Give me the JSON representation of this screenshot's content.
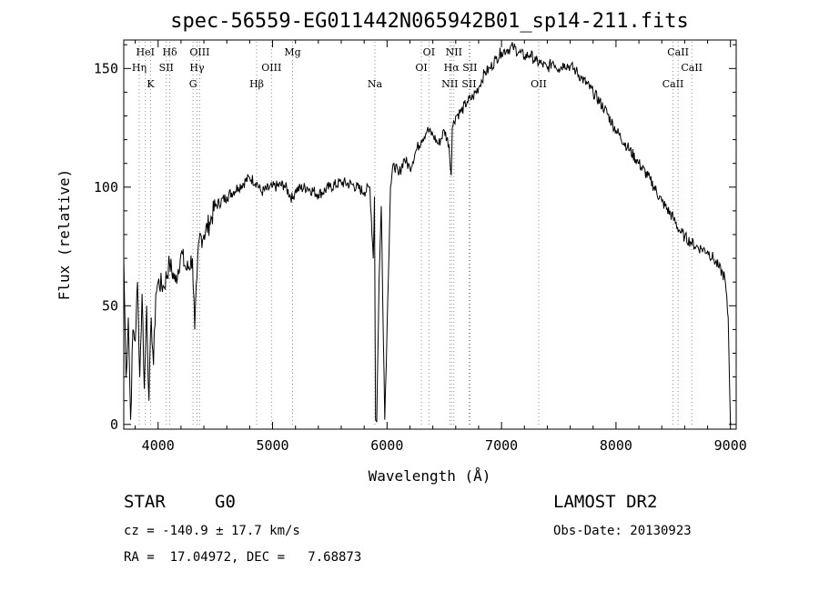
{
  "title": "spec-56559-EG011442N065942B01_sp14-211.fits",
  "info": {
    "class": "STAR",
    "subclass": "G0",
    "survey": "LAMOST DR2",
    "cz": "cz = -140.9 ± 17.7 km/s",
    "obs_date": "Obs-Date: 20130923",
    "radec": "RA =  17.04972, DEC =   7.68873"
  },
  "chart_data": {
    "type": "line",
    "xlabel": "Wavelength (Å)",
    "ylabel": "Flux (relative)",
    "xlim": [
      3700,
      9050
    ],
    "ylim": [
      -2,
      162
    ],
    "xticks": [
      4000,
      5000,
      6000,
      7000,
      8000,
      9000
    ],
    "yticks": [
      0,
      50,
      100,
      150
    ],
    "series": [
      {
        "x": [
          3700,
          3720,
          3740,
          3760,
          3780,
          3800,
          3820,
          3840,
          3860,
          3880,
          3900,
          3920,
          3940,
          3960,
          3980,
          4000,
          4050,
          4100,
          4150,
          4200,
          4250,
          4300,
          4320,
          4340,
          4360,
          4400,
          4450,
          4500,
          4600,
          4700,
          4800,
          4860,
          4900,
          5000,
          5100,
          5175,
          5200,
          5300,
          5400,
          5500,
          5600,
          5700,
          5800,
          5850,
          5880,
          5890,
          5900,
          5910,
          5930,
          5950,
          5980,
          6000,
          6030,
          6060,
          6100,
          6150,
          6200,
          6250,
          6300,
          6350,
          6400,
          6450,
          6500,
          6540,
          6560,
          6570,
          6600,
          6650,
          6700,
          6750,
          6800,
          6850,
          6900,
          6950,
          7000,
          7050,
          7100,
          7150,
          7200,
          7250,
          7300,
          7350,
          7400,
          7450,
          7500,
          7550,
          7600,
          7650,
          7700,
          7800,
          7900,
          8000,
          8100,
          8200,
          8300,
          8400,
          8500,
          8550,
          8600,
          8650,
          8700,
          8750,
          8800,
          8850,
          8900,
          8950,
          8980,
          9000
        ],
        "y": [
          70,
          20,
          45,
          2,
          40,
          35,
          60,
          20,
          55,
          15,
          50,
          10,
          45,
          25,
          55,
          60,
          58,
          68,
          60,
          72,
          65,
          70,
          40,
          62,
          78,
          80,
          85,
          92,
          96,
          100,
          104,
          102,
          98,
          100,
          101,
          95,
          99,
          100,
          97,
          100,
          102,
          101,
          98,
          100,
          70,
          96,
          2,
          1,
          60,
          92,
          2,
          40,
          100,
          110,
          105,
          112,
          108,
          115,
          120,
          124,
          122,
          118,
          124,
          118,
          105,
          125,
          130,
          132,
          136,
          138,
          142,
          148,
          150,
          154,
          157,
          158,
          159,
          157,
          155,
          156,
          153,
          152,
          150,
          153,
          150,
          152,
          151,
          149,
          146,
          140,
          133,
          124,
          117,
          110,
          103,
          94,
          87,
          82,
          79,
          77,
          75,
          74,
          73,
          70,
          66,
          62,
          45,
          0
        ]
      }
    ],
    "lines": [
      {
        "label": "HeI",
        "x": 3889,
        "row": 0
      },
      {
        "label": "Hη",
        "x": 3835,
        "row": 1
      },
      {
        "label": "K",
        "x": 3934,
        "row": 2
      },
      {
        "label": "Hδ",
        "x": 4102,
        "row": 0
      },
      {
        "label": "SII",
        "x": 4072,
        "row": 1
      },
      {
        "label": "OIII",
        "x": 4363,
        "row": 0
      },
      {
        "label": "Hγ",
        "x": 4340,
        "row": 1
      },
      {
        "label": "G",
        "x": 4305,
        "row": 2
      },
      {
        "label": "OIII",
        "x": 4990,
        "row": 1
      },
      {
        "label": "Hβ",
        "x": 4861,
        "row": 2
      },
      {
        "label": "Mg",
        "x": 5175,
        "row": 0
      },
      {
        "label": "Na",
        "x": 5894,
        "row": 2
      },
      {
        "label": "OI",
        "x": 6366,
        "row": 0
      },
      {
        "label": "OI",
        "x": 6300,
        "row": 1
      },
      {
        "label": "NII",
        "x": 6584,
        "row": 0
      },
      {
        "label": "Hα",
        "x": 6563,
        "row": 1
      },
      {
        "label": "SII",
        "x": 6724,
        "row": 1
      },
      {
        "label": "NII",
        "x": 6548,
        "row": 2
      },
      {
        "label": "SII",
        "x": 6717,
        "row": 2
      },
      {
        "label": "OII",
        "x": 7325,
        "row": 2
      },
      {
        "label": "CaII",
        "x": 8542,
        "row": 0
      },
      {
        "label": "CaII",
        "x": 8662,
        "row": 1
      },
      {
        "label": "CaII",
        "x": 8498,
        "row": 2
      }
    ],
    "line_color": "#000000",
    "marker_color": "#777777"
  }
}
